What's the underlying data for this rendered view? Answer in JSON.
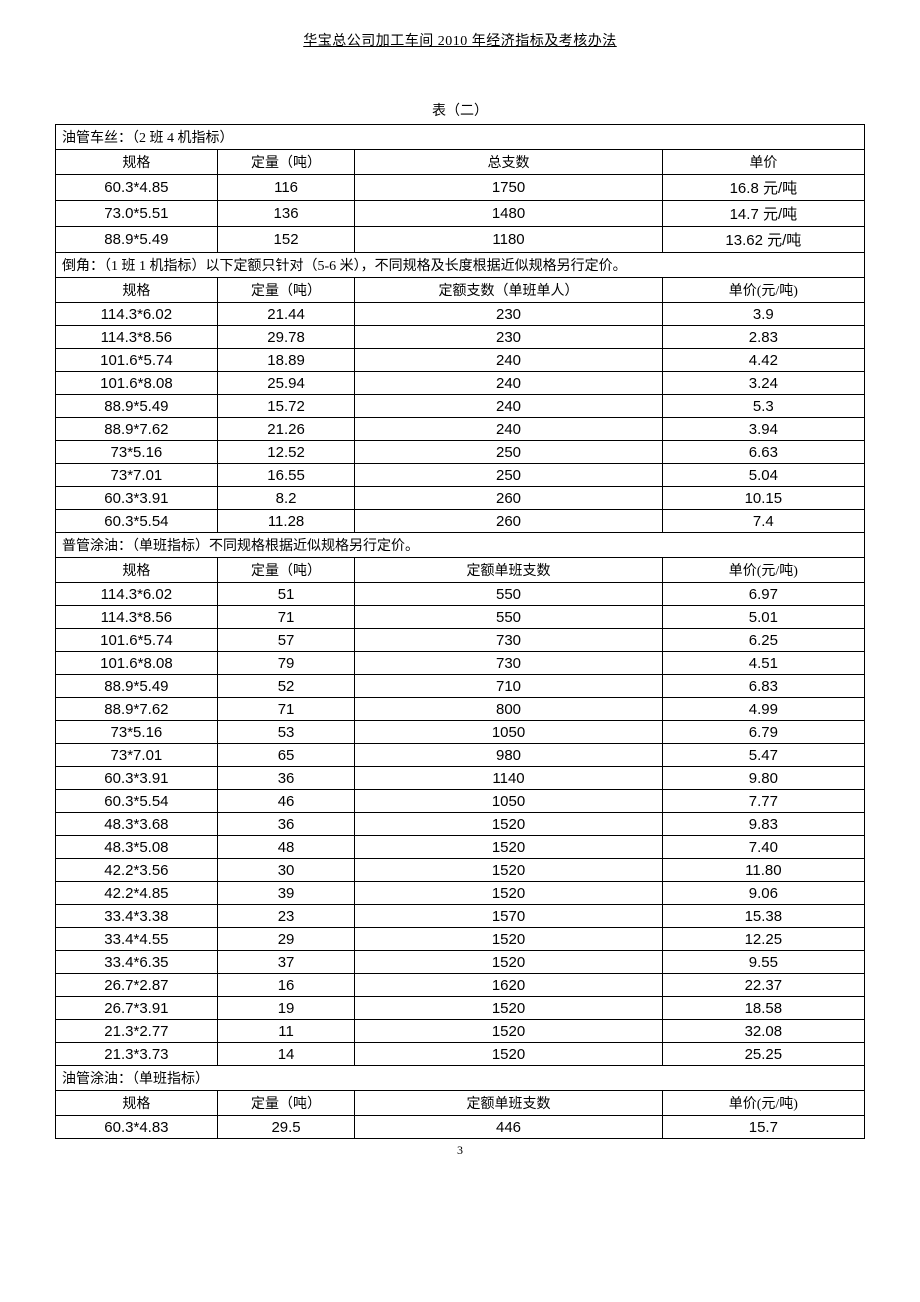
{
  "header_title": "华宝总公司加工车间 2010 年经济指标及考核办法",
  "table_caption": "表（二）",
  "page_number": "3",
  "section1": {
    "title": "油管车丝：（2 班 4 机指标）",
    "headers": [
      "规格",
      "定量（吨）",
      "总支数",
      "单价"
    ],
    "rows": [
      {
        "spec": "60.3*4.85",
        "qty": "116",
        "count": "1750",
        "price": "16.8 元/吨"
      },
      {
        "spec": "73.0*5.51",
        "qty": "136",
        "count": "1480",
        "price": "14.7 元/吨"
      },
      {
        "spec": "88.9*5.49",
        "qty": "152",
        "count": "1180",
        "price": "13.62 元/吨"
      }
    ]
  },
  "section2": {
    "title": "倒角：（1 班 1 机指标）以下定额只针对（5-6 米），不同规格及长度根据近似规格另行定价。",
    "headers": [
      "规格",
      "定量（吨）",
      "定额支数（单班单人）",
      "单价(元/吨)"
    ],
    "rows": [
      {
        "spec": "114.3*6.02",
        "qty": "21.44",
        "count": "230",
        "price": "3.9"
      },
      {
        "spec": "114.3*8.56",
        "qty": "29.78",
        "count": "230",
        "price": "2.83"
      },
      {
        "spec": "101.6*5.74",
        "qty": "18.89",
        "count": "240",
        "price": "4.42"
      },
      {
        "spec": "101.6*8.08",
        "qty": "25.94",
        "count": "240",
        "price": "3.24"
      },
      {
        "spec": "88.9*5.49",
        "qty": "15.72",
        "count": "240",
        "price": "5.3"
      },
      {
        "spec": "88.9*7.62",
        "qty": "21.26",
        "count": "240",
        "price": "3.94"
      },
      {
        "spec": "73*5.16",
        "qty": "12.52",
        "count": "250",
        "price": "6.63"
      },
      {
        "spec": "73*7.01",
        "qty": "16.55",
        "count": "250",
        "price": "5.04"
      },
      {
        "spec": "60.3*3.91",
        "qty": "8.2",
        "count": "260",
        "price": "10.15"
      },
      {
        "spec": "60.3*5.54",
        "qty": "11.28",
        "count": "260",
        "price": "7.4"
      }
    ]
  },
  "section3": {
    "title": "普管涂油：（单班指标）不同规格根据近似规格另行定价。",
    "headers": [
      "规格",
      "定量（吨）",
      "定额单班支数",
      "单价(元/吨)"
    ],
    "rows": [
      {
        "spec": "114.3*6.02",
        "qty": "51",
        "count": "550",
        "price": "6.97"
      },
      {
        "spec": "114.3*8.56",
        "qty": "71",
        "count": "550",
        "price": "5.01"
      },
      {
        "spec": "101.6*5.74",
        "qty": "57",
        "count": "730",
        "price": "6.25"
      },
      {
        "spec": "101.6*8.08",
        "qty": "79",
        "count": "730",
        "price": "4.51"
      },
      {
        "spec": "88.9*5.49",
        "qty": "52",
        "count": "710",
        "price": "6.83"
      },
      {
        "spec": "88.9*7.62",
        "qty": "71",
        "count": "800",
        "price": "4.99"
      },
      {
        "spec": "73*5.16",
        "qty": "53",
        "count": "1050",
        "price": "6.79"
      },
      {
        "spec": "73*7.01",
        "qty": "65",
        "count": "980",
        "price": "5.47"
      },
      {
        "spec": "60.3*3.91",
        "qty": "36",
        "count": "1140",
        "price": "9.80"
      },
      {
        "spec": "60.3*5.54",
        "qty": "46",
        "count": "1050",
        "price": "7.77"
      },
      {
        "spec": "48.3*3.68",
        "qty": "36",
        "count": "1520",
        "price": "9.83"
      },
      {
        "spec": "48.3*5.08",
        "qty": "48",
        "count": "1520",
        "price": "7.40"
      },
      {
        "spec": "42.2*3.56",
        "qty": "30",
        "count": "1520",
        "price": "11.80"
      },
      {
        "spec": "42.2*4.85",
        "qty": "39",
        "count": "1520",
        "price": "9.06"
      },
      {
        "spec": "33.4*3.38",
        "qty": "23",
        "count": "1570",
        "price": "15.38"
      },
      {
        "spec": "33.4*4.55",
        "qty": "29",
        "count": "1520",
        "price": "12.25"
      },
      {
        "spec": "33.4*6.35",
        "qty": "37",
        "count": "1520",
        "price": "9.55"
      },
      {
        "spec": "26.7*2.87",
        "qty": "16",
        "count": "1620",
        "price": "22.37"
      },
      {
        "spec": "26.7*3.91",
        "qty": "19",
        "count": "1520",
        "price": "18.58"
      },
      {
        "spec": "21.3*2.77",
        "qty": "11",
        "count": "1520",
        "price": "32.08"
      },
      {
        "spec": "21.3*3.73",
        "qty": "14",
        "count": "1520",
        "price": "25.25"
      }
    ]
  },
  "section4": {
    "title": "油管涂油：（单班指标）",
    "headers": [
      "规格",
      "定量（吨）",
      "定额单班支数",
      "单价(元/吨)"
    ],
    "rows": [
      {
        "spec": "60.3*4.83",
        "qty": "29.5",
        "count": "446",
        "price": "15.7"
      }
    ]
  }
}
